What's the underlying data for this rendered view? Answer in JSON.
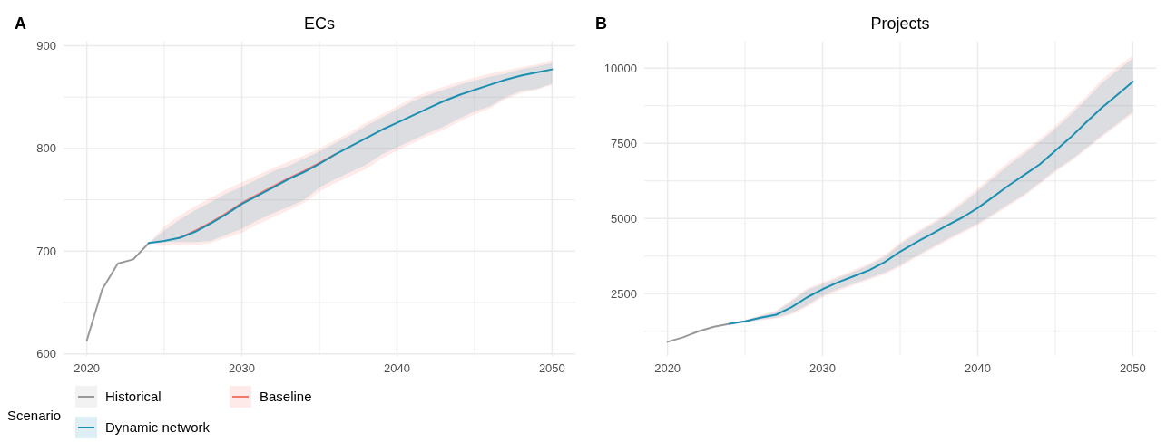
{
  "chart_data": [
    {
      "type": "line",
      "title": "ECs",
      "annotations": [
        "A"
      ],
      "legend_title": "Scenario",
      "legend": "bottom",
      "grid": true,
      "xlim": [
        2018.5,
        2051.5
      ],
      "ylim": [
        598,
        904
      ],
      "xticks": [
        2020,
        {
          "value": 2025,
          "label": null
        },
        2030,
        {
          "value": 2035,
          "label": null
        },
        2040,
        {
          "value": 2045,
          "label": null
        },
        2050
      ],
      "yticks": [
        600,
        {
          "value": 650,
          "label": null
        },
        700,
        {
          "value": 750,
          "label": null
        },
        800,
        {
          "value": 850,
          "label": null
        },
        900
      ],
      "series": [
        {
          "name": "Historical",
          "color": "#999999",
          "x": [
            2020,
            2021,
            2022,
            2023,
            2024
          ],
          "values": [
            613,
            663,
            688,
            692,
            708
          ]
        },
        {
          "name": "Baseline",
          "color": "#f8766d",
          "x": [
            2024,
            2025,
            2026,
            2027,
            2028,
            2029,
            2030,
            2031,
            2032,
            2033,
            2034,
            2035,
            2036,
            2037,
            2038,
            2039,
            2040,
            2041,
            2042,
            2043,
            2044,
            2045,
            2046,
            2047,
            2048,
            2049,
            2050
          ],
          "values": [
            null,
            null,
            713,
            720,
            728,
            737,
            747,
            755,
            763,
            771,
            778,
            786,
            794,
            null,
            null,
            null,
            null,
            null,
            null,
            null,
            null,
            null,
            null,
            null,
            null,
            null,
            null
          ],
          "lower": [
            708,
            706,
            706,
            706,
            708,
            713,
            718,
            726,
            733,
            740,
            747,
            758,
            766,
            773,
            780,
            790,
            798,
            805,
            812,
            818,
            826,
            833,
            839,
            848,
            854,
            857,
            862
          ],
          "upper": [
            708,
            724,
            735,
            744,
            752,
            760,
            767,
            774,
            781,
            787,
            793,
            800,
            808,
            816,
            825,
            833,
            841,
            849,
            855,
            860,
            865,
            869,
            873,
            876,
            879,
            882,
            886
          ]
        },
        {
          "name": "Dynamic network",
          "color": "#1b8fb2",
          "x": [
            2024,
            2025,
            2026,
            2027,
            2028,
            2029,
            2030,
            2031,
            2032,
            2033,
            2034,
            2035,
            2036,
            2037,
            2038,
            2039,
            2040,
            2041,
            2042,
            2043,
            2044,
            2045,
            2046,
            2047,
            2048,
            2049,
            2050
          ],
          "values": [
            708,
            710,
            713,
            719,
            727,
            736,
            746,
            754,
            762,
            770,
            777,
            785,
            794,
            802,
            810,
            818,
            825,
            832,
            839,
            846,
            852,
            857,
            862,
            867,
            871,
            874,
            877
          ],
          "lower": [
            708,
            709,
            709,
            709,
            710,
            716,
            722,
            730,
            737,
            743,
            750,
            762,
            770,
            777,
            784,
            794,
            801,
            808,
            815,
            821,
            829,
            836,
            841,
            850,
            856,
            858,
            863
          ],
          "upper": [
            708,
            720,
            731,
            740,
            748,
            756,
            763,
            770,
            778,
            783,
            790,
            797,
            805,
            813,
            822,
            830,
            838,
            846,
            852,
            857,
            862,
            866,
            870,
            873,
            877,
            880,
            883
          ]
        }
      ]
    },
    {
      "type": "line",
      "title": "Projects",
      "annotations": [
        "B"
      ],
      "legend": false,
      "grid": true,
      "xlim": [
        2018.5,
        2051.5
      ],
      "ylim": [
        430,
        10880
      ],
      "xticks": [
        2020,
        {
          "value": 2025,
          "label": null
        },
        2030,
        {
          "value": 2035,
          "label": null
        },
        2040,
        {
          "value": 2045,
          "label": null
        },
        2050
      ],
      "yticks": [
        {
          "value": 1250,
          "label": null
        },
        2500,
        {
          "value": 3750,
          "label": null
        },
        5000,
        {
          "value": 6250,
          "label": null
        },
        7500,
        {
          "value": 8750,
          "label": null
        },
        10000
      ],
      "series": [
        {
          "color": "#999999",
          "x": [
            2020,
            2021,
            2022,
            2023,
            2024
          ],
          "values": [
            900,
            1050,
            1250,
            1400,
            1500
          ]
        },
        {
          "color": "#f8766d",
          "x": [
            2024,
            2025,
            2026,
            2027,
            2028,
            2029,
            2030,
            2031,
            2032,
            2033,
            2034,
            2035,
            2036,
            2037,
            2038,
            2039,
            2040,
            2041,
            2042,
            2043,
            2044,
            2045,
            2046,
            2047,
            2048,
            2049,
            2050
          ],
          "values": [
            null,
            null,
            null,
            null,
            null,
            null,
            null,
            null,
            null,
            null,
            null,
            null,
            null,
            null,
            null,
            null,
            null,
            null,
            null,
            null,
            null,
            null,
            null,
            null,
            null,
            null,
            null
          ],
          "lower": [
            1500,
            1540,
            1610,
            1670,
            1800,
            2060,
            2380,
            2590,
            2780,
            2960,
            3140,
            3390,
            3690,
            3970,
            4250,
            4510,
            4770,
            5090,
            5420,
            5740,
            6140,
            6540,
            6890,
            7290,
            7700,
            8090,
            8480
          ],
          "upper": [
            1500,
            1630,
            1790,
            1940,
            2300,
            2680,
            2880,
            3080,
            3290,
            3510,
            3790,
            4210,
            4550,
            4850,
            5180,
            5570,
            6000,
            6450,
            6880,
            7250,
            7650,
            8080,
            8560,
            9060,
            9620,
            10040,
            10420
          ]
        },
        {
          "color": "#1b8fb2",
          "x": [
            2024,
            2025,
            2026,
            2027,
            2028,
            2029,
            2030,
            2031,
            2032,
            2033,
            2034,
            2035,
            2036,
            2037,
            2038,
            2039,
            2040,
            2041,
            2042,
            2043,
            2044,
            2045,
            2046,
            2047,
            2048,
            2049,
            2050
          ],
          "values": [
            1500,
            1580,
            1700,
            1800,
            2050,
            2380,
            2650,
            2880,
            3080,
            3280,
            3550,
            3900,
            4200,
            4480,
            4760,
            5030,
            5350,
            5720,
            6100,
            6450,
            6800,
            7250,
            7700,
            8200,
            8680,
            9110,
            9550
          ],
          "lower": [
            1500,
            1560,
            1640,
            1700,
            1850,
            2120,
            2440,
            2650,
            2840,
            3020,
            3200,
            3450,
            3750,
            4030,
            4310,
            4570,
            4830,
            5150,
            5480,
            5800,
            6200,
            6600,
            6950,
            7350,
            7760,
            8150,
            8550
          ],
          "upper": [
            1500,
            1610,
            1760,
            1900,
            2250,
            2620,
            2820,
            3020,
            3230,
            3450,
            3720,
            4140,
            4480,
            4780,
            5100,
            5480,
            5900,
            6350,
            6780,
            7150,
            7550,
            7980,
            8450,
            8950,
            9500,
            9920,
            10320
          ]
        }
      ]
    }
  ]
}
